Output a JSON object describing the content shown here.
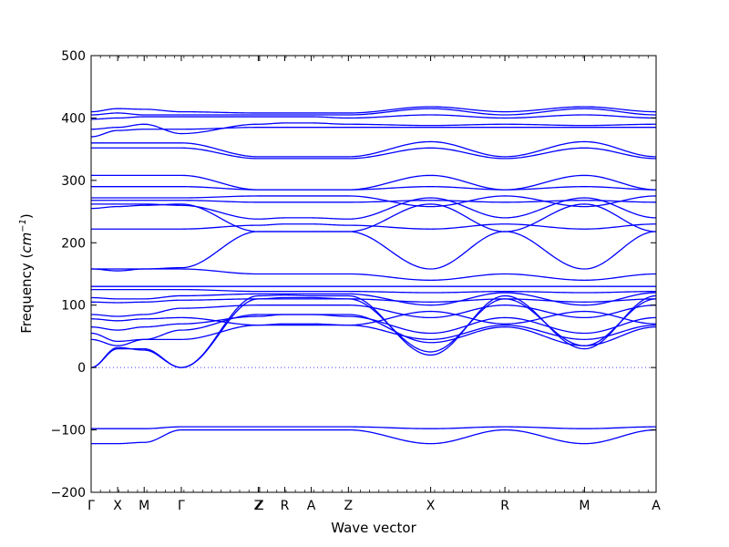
{
  "chart_data": {
    "type": "line",
    "title": "",
    "xlabel": "Wave vector",
    "ylabel_text": "Frequency (",
    "ylabel_unit": "cm",
    "ylabel_exp": "−1",
    "ylabel_close": ")",
    "ylim": [
      -200,
      500
    ],
    "yticks": [
      -200,
      -100,
      0,
      100,
      200,
      300,
      400,
      500
    ],
    "xticks": [
      {
        "label": "Γ",
        "x": 0
      },
      {
        "label": "X",
        "x": 1
      },
      {
        "label": "M",
        "x": 2
      },
      {
        "label": "Γ",
        "x": 3.4
      },
      {
        "label": "Z",
        "x": 6.3
      },
      {
        "label": "Z",
        "x": 6.35
      },
      {
        "label": "R",
        "x": 7.3
      },
      {
        "label": "A",
        "x": 8.3
      },
      {
        "label": "Z",
        "x": 9.7
      },
      {
        "label": "X",
        "x": 12.8
      },
      {
        "label": "R",
        "x": 15.6
      },
      {
        "label": "M",
        "x": 18.6
      },
      {
        "label": "A",
        "x": 21.3
      }
    ],
    "xlim": [
      0,
      21.3
    ],
    "zero_line": {
      "y": 0,
      "style": "dotted"
    },
    "grid": false,
    "legend": false,
    "line_color": "#0000ff",
    "series": [
      {
        "values": [
          -122,
          -122,
          -120,
          -100,
          -100,
          -100,
          -100,
          -100,
          -122,
          -100,
          -122,
          -100
        ]
      },
      {
        "values": [
          -98,
          -98,
          -98,
          -95,
          -95,
          -95,
          -95,
          -95,
          -98,
          -95,
          -98,
          -95
        ]
      },
      {
        "values": [
          0,
          30,
          30,
          0,
          110,
          112,
          112,
          110,
          25,
          110,
          35,
          110
        ]
      },
      {
        "values": [
          0,
          32,
          28,
          0,
          115,
          116,
          115,
          115,
          20,
          115,
          30,
          115
        ]
      },
      {
        "values": [
          45,
          35,
          45,
          45,
          68,
          68,
          68,
          68,
          45,
          68,
          45,
          68
        ]
      },
      {
        "values": [
          55,
          42,
          45,
          60,
          85,
          85,
          85,
          85,
          40,
          65,
          35,
          65
        ]
      },
      {
        "values": [
          65,
          60,
          65,
          70,
          82,
          85,
          85,
          82,
          55,
          80,
          55,
          80
        ]
      },
      {
        "values": [
          78,
          75,
          78,
          80,
          68,
          70,
          70,
          68,
          90,
          70,
          90,
          70
        ]
      },
      {
        "values": [
          85,
          82,
          85,
          95,
          100,
          100,
          100,
          100,
          80,
          100,
          80,
          100
        ]
      },
      {
        "values": [
          105,
          104,
          105,
          108,
          110,
          110,
          110,
          110,
          105,
          110,
          105,
          110
        ]
      },
      {
        "values": [
          112,
          110,
          110,
          115,
          118,
          118,
          118,
          118,
          100,
          120,
          100,
          120
        ]
      },
      {
        "values": [
          125,
          125,
          125,
          125,
          122,
          122,
          122,
          122,
          120,
          122,
          120,
          122
        ]
      },
      {
        "values": [
          130,
          130,
          130,
          130,
          130,
          130,
          130,
          130,
          130,
          130,
          130,
          130
        ]
      },
      {
        "values": [
          158,
          155,
          158,
          158,
          150,
          150,
          150,
          150,
          140,
          150,
          140,
          150
        ]
      },
      {
        "values": [
          158,
          158,
          158,
          160,
          218,
          218,
          218,
          218,
          158,
          218,
          158,
          218
        ]
      },
      {
        "values": [
          222,
          222,
          222,
          222,
          228,
          230,
          230,
          228,
          222,
          230,
          222,
          230
        ]
      },
      {
        "values": [
          255,
          258,
          260,
          262,
          218,
          218,
          218,
          218,
          262,
          218,
          262,
          218
        ]
      },
      {
        "values": [
          262,
          262,
          262,
          260,
          238,
          240,
          240,
          238,
          272,
          240,
          272,
          240
        ]
      },
      {
        "values": [
          268,
          268,
          268,
          268,
          265,
          265,
          265,
          265,
          268,
          265,
          268,
          265
        ]
      },
      {
        "values": [
          272,
          272,
          272,
          272,
          275,
          275,
          275,
          275,
          258,
          275,
          258,
          275
        ]
      },
      {
        "values": [
          290,
          290,
          290,
          290,
          285,
          285,
          285,
          285,
          290,
          285,
          290,
          285
        ]
      },
      {
        "values": [
          308,
          308,
          308,
          308,
          285,
          285,
          285,
          285,
          308,
          285,
          308,
          285
        ]
      },
      {
        "values": [
          352,
          352,
          352,
          352,
          335,
          335,
          335,
          335,
          352,
          335,
          352,
          335
        ]
      },
      {
        "values": [
          360,
          360,
          360,
          360,
          338,
          338,
          338,
          338,
          362,
          338,
          362,
          338
        ]
      },
      {
        "values": [
          370,
          380,
          382,
          382,
          385,
          385,
          385,
          385,
          385,
          385,
          385,
          385
        ]
      },
      {
        "values": [
          382,
          385,
          390,
          375,
          390,
          392,
          392,
          390,
          388,
          390,
          388,
          390
        ]
      },
      {
        "values": [
          398,
          400,
          402,
          402,
          402,
          402,
          402,
          400,
          405,
          400,
          405,
          400
        ]
      },
      {
        "values": [
          405,
          408,
          405,
          405,
          405,
          405,
          405,
          405,
          415,
          405,
          415,
          405
        ]
      },
      {
        "values": [
          410,
          415,
          414,
          410,
          408,
          408,
          408,
          408,
          418,
          410,
          418,
          410
        ]
      }
    ]
  }
}
